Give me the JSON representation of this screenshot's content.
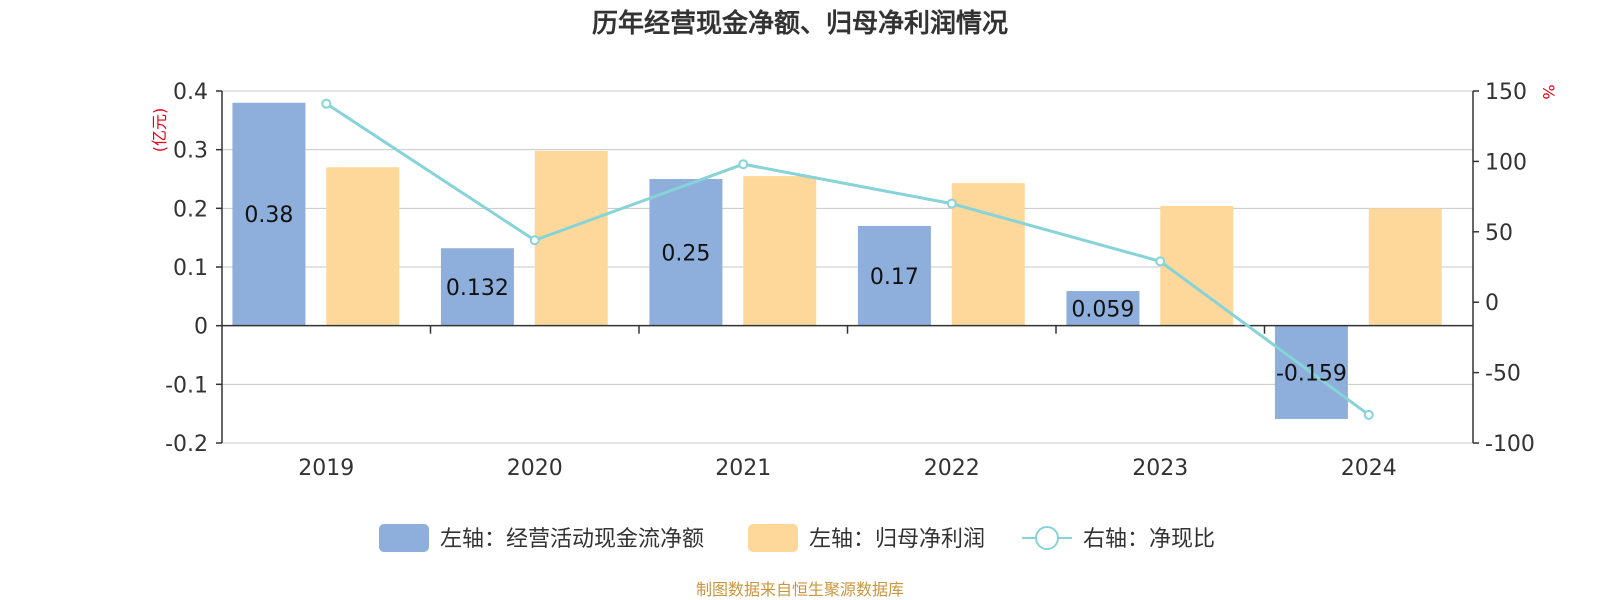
{
  "chart_data": {
    "type": "bar",
    "title": "历年经营现金净额、归母净利润情况",
    "categories": [
      "2019",
      "2020",
      "2021",
      "2022",
      "2023",
      "2024"
    ],
    "left_axis": {
      "unit": "(亿元)",
      "ylim": [
        -0.2,
        0.4
      ],
      "ticks": [
        "0.4",
        "0.3",
        "0.2",
        "0.1",
        "0",
        "-0.1",
        "-0.2"
      ]
    },
    "right_axis": {
      "unit": "%",
      "ylim": [
        -100,
        150
      ],
      "ticks": [
        "150",
        "100",
        "50",
        "0",
        "-50",
        "-100"
      ]
    },
    "series": [
      {
        "name": "左轴：经营活动现金流净额",
        "type": "bar",
        "axis": "left",
        "color": "#8eaedb",
        "values": [
          0.38,
          0.132,
          0.25,
          0.17,
          0.059,
          -0.159
        ],
        "labels": [
          "0.38",
          "0.132",
          "0.25",
          "0.17",
          "0.059",
          "-0.159"
        ]
      },
      {
        "name": "左轴：归母净利润",
        "type": "bar",
        "axis": "left",
        "color": "#fdd89a",
        "values": [
          0.27,
          0.298,
          0.255,
          0.243,
          0.204,
          0.2
        ]
      },
      {
        "name": "右轴：净现比",
        "type": "line",
        "axis": "right",
        "color": "#86d3d8",
        "values": [
          141,
          44,
          98,
          70,
          29,
          -80
        ]
      }
    ],
    "grid": true,
    "legend_position": "bottom"
  },
  "source": "制图数据来自恒生聚源数据库"
}
